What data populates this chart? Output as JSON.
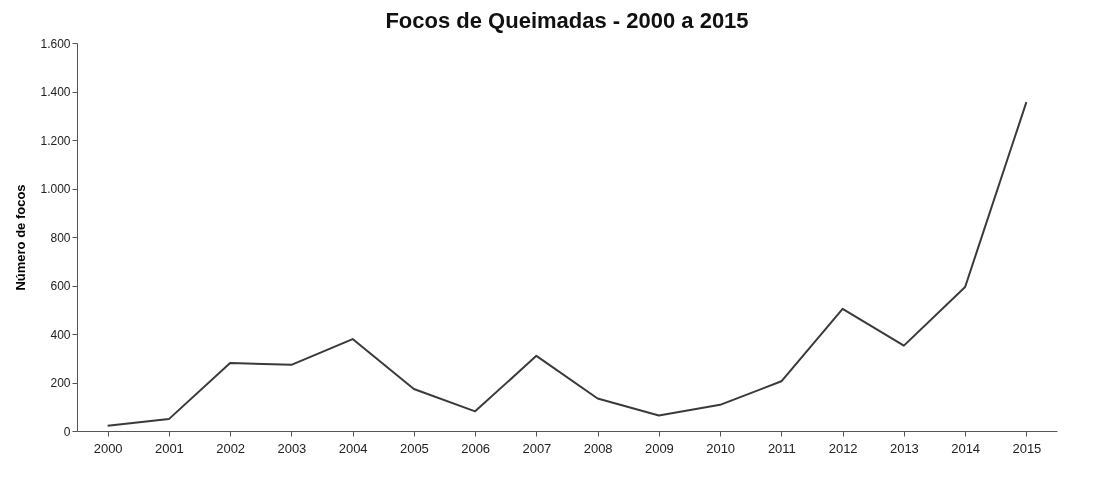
{
  "chart_data": {
    "type": "line",
    "title": "Focos de Queimadas - 2000 a 2015",
    "ylabel": "Número de focos",
    "categories": [
      "2000",
      "2001",
      "2002",
      "2003",
      "2004",
      "2005",
      "2006",
      "2007",
      "2008",
      "2009",
      "2010",
      "2011",
      "2012",
      "2013",
      "2014",
      "2015"
    ],
    "series": [
      {
        "color": "#3a3a3a",
        "values": [
          22,
          49,
          280,
          273,
          379,
          173,
          81,
          310,
          134,
          64,
          108,
          205,
          504,
          352,
          594,
          1356
        ]
      }
    ],
    "ylim": [
      0,
      1600
    ],
    "yticks": [
      {
        "value": 0,
        "label": "0"
      },
      {
        "value": 200,
        "label": "200"
      },
      {
        "value": 400,
        "label": "400"
      },
      {
        "value": 600,
        "label": "600"
      },
      {
        "value": 800,
        "label": "800"
      },
      {
        "value": 1000,
        "label": "1.000"
      },
      {
        "value": 1200,
        "label": "1.200"
      },
      {
        "value": 1400,
        "label": "1.400"
      },
      {
        "value": 1600,
        "label": "1.600"
      }
    ],
    "grid": false
  }
}
